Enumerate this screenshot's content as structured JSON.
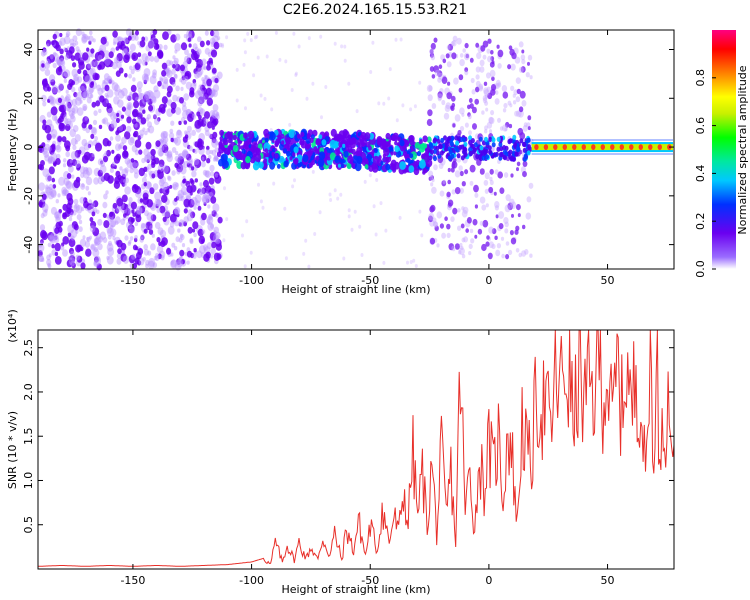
{
  "title": "C2E6.2024.165.15.53.R21",
  "colors": {
    "spectrogram_points": "#6a00f0",
    "snr_line": "#e8302a",
    "axis": "#000000"
  },
  "chart_data": [
    {
      "type": "heatmap",
      "xlabel": "Height of straight line (km)",
      "ylabel": "Frequency (Hz)",
      "xlim": [
        -190,
        78
      ],
      "ylim": [
        -50,
        48
      ],
      "xticks": [
        -150,
        -100,
        -50,
        0,
        50
      ],
      "yticks": [
        -40,
        -20,
        0,
        20,
        40
      ],
      "colorbar": {
        "label": "Normalized spectral amplitude",
        "range": [
          0,
          1
        ],
        "ticks": [
          0.0,
          0.2,
          0.4,
          0.6,
          0.8
        ]
      },
      "regions": [
        {
          "x_range": [
            -190,
            -113
          ],
          "description": "broadband scatter across all frequencies, amplitude ~0.1-0.25"
        },
        {
          "x_range": [
            -113,
            -25
          ],
          "description": "band near 0 Hz (about -8 to +6 Hz), amplitude up to ~0.6"
        },
        {
          "x_range": [
            -25,
            18
          ],
          "description": "band near 0 Hz with sparse scatter from -45 to +45 Hz"
        },
        {
          "x_range": [
            18,
            78
          ],
          "description": "narrow band at 0 Hz, amplitude ~0.9-1.0"
        }
      ]
    },
    {
      "type": "line",
      "xlabel": "Height of straight line (km)",
      "ylabel": "SNR (10 * v/v)",
      "y_multiplier": "(x10⁴)",
      "xlim": [
        -190,
        78
      ],
      "ylim": [
        0,
        2.7
      ],
      "xticks": [
        -150,
        -100,
        -50,
        0,
        50
      ],
      "yticks": [
        0.5,
        1.0,
        1.5,
        2.0,
        2.5
      ],
      "series": [
        {
          "x": [
            -190,
            -180,
            -170,
            -160,
            -150,
            -140,
            -130,
            -120,
            -110,
            -100,
            -95,
            -92,
            -90,
            -87,
            -85,
            -82,
            -80,
            -77,
            -75,
            -72,
            -70,
            -67,
            -65,
            -62,
            -60,
            -57,
            -55,
            -52,
            -50,
            -47,
            -45,
            -42,
            -40,
            -38,
            -36,
            -34,
            -33,
            -32,
            -30,
            -28,
            -26,
            -24,
            -22,
            -20,
            -18,
            -16,
            -14,
            -12,
            -10,
            -8,
            -6,
            -4,
            -2,
            0,
            2,
            4,
            6,
            8,
            10,
            12,
            14,
            16,
            18,
            20,
            22,
            24,
            26,
            28,
            30,
            32,
            34,
            36,
            38,
            40,
            42,
            44,
            46,
            48,
            50,
            52,
            54,
            56,
            58,
            60,
            62,
            64,
            66,
            68,
            70,
            71,
            72,
            73,
            74,
            76,
            78
          ],
          "values": [
            0.03,
            0.04,
            0.03,
            0.04,
            0.03,
            0.04,
            0.03,
            0.04,
            0.05,
            0.08,
            0.12,
            0.05,
            0.3,
            0.08,
            0.28,
            0.1,
            0.3,
            0.12,
            0.25,
            0.1,
            0.35,
            0.15,
            0.4,
            0.1,
            0.45,
            0.2,
            0.55,
            0.15,
            0.5,
            0.2,
            0.7,
            0.3,
            0.6,
            0.4,
            0.9,
            0.5,
            1.0,
            1.3,
            0.6,
            1.1,
            0.5,
            1.2,
            0.4,
            1.3,
            0.6,
            1.1,
            0.3,
            2.3,
            0.6,
            1.2,
            0.4,
            1.3,
            0.9,
            1.4,
            1.1,
            1.5,
            0.8,
            1.6,
            1.2,
            0.5,
            1.7,
            1.3,
            1.2,
            2.0,
            1.8,
            1.9,
            1.5,
            2.2,
            2.0,
            2.3,
            2.1,
            1.6,
            2.4,
            1.8,
            2.1,
            1.9,
            2.6,
            2.0,
            2.2,
            1.6,
            2.3,
            1.8,
            2.4,
            1.7,
            2.3,
            1.9,
            1.0,
            2.5,
            1.2,
            2.6,
            0.95,
            2.0,
            1.7,
            1.9,
            1.4
          ]
        }
      ]
    }
  ]
}
